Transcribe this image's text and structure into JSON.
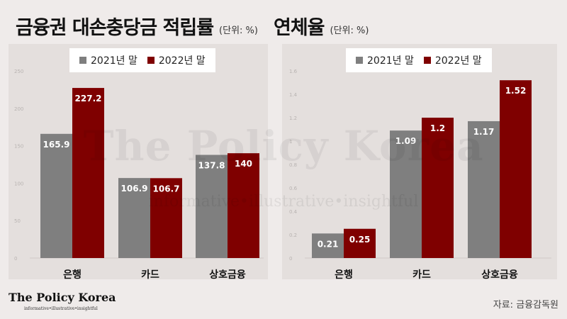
{
  "titles": {
    "left_main": "금융권 대손충당금 적립률",
    "left_unit": "(단위: %)",
    "right_main": "연체율",
    "right_unit": "(단위: %)"
  },
  "legend": {
    "y2021": "2021년 말",
    "y2022": "2022년 말"
  },
  "colors": {
    "y2021": "#7f7f7f",
    "y2022": "#7f0000"
  },
  "watermark": {
    "main": "The Policy Korea",
    "sub": "informative•illustrative•insightful"
  },
  "logo": {
    "main": "The Policy Korea",
    "sub": "informative•illustrative•insightful"
  },
  "source": "자료: 금융감독원",
  "chart_data": [
    {
      "type": "bar",
      "title": "금융권 대손충당금 적립률",
      "unit": "(단위: %)",
      "categories": [
        "은행",
        "카드",
        "상호금융"
      ],
      "series": [
        {
          "name": "2021년 말",
          "values": [
            165.9,
            106.9,
            137.8
          ],
          "labels": [
            "165.9",
            "106.9",
            "137.8"
          ]
        },
        {
          "name": "2022년 말",
          "values": [
            227.2,
            106.7,
            140
          ],
          "labels": [
            "227.2",
            "106.7",
            "140"
          ]
        }
      ],
      "ylim": [
        0,
        250
      ],
      "yticks": [
        0,
        50,
        100,
        150,
        200,
        250
      ],
      "ytick_labels": [
        "0",
        "50",
        "100",
        "150",
        "200",
        "250"
      ],
      "grid": false,
      "legend_position": "top"
    },
    {
      "type": "bar",
      "title": "연체율",
      "unit": "(단위: %)",
      "categories": [
        "은행",
        "카드",
        "상호금융"
      ],
      "series": [
        {
          "name": "2021년 말",
          "values": [
            0.21,
            1.09,
            1.17
          ],
          "labels": [
            "0.21",
            "1.09",
            "1.17"
          ]
        },
        {
          "name": "2022년 말",
          "values": [
            0.25,
            1.2,
            1.52
          ],
          "labels": [
            "0.25",
            "1.2",
            "1.52"
          ]
        }
      ],
      "ylim": [
        0,
        1.6
      ],
      "yticks": [
        0,
        0.2,
        0.4,
        0.6,
        0.8,
        1,
        1.2,
        1.4,
        1.6
      ],
      "ytick_labels": [
        "0",
        "0.2",
        "0.4",
        "0.6",
        "0.8",
        "1",
        "1.2",
        "1.4",
        "1.6"
      ],
      "grid": false,
      "legend_position": "top"
    }
  ]
}
